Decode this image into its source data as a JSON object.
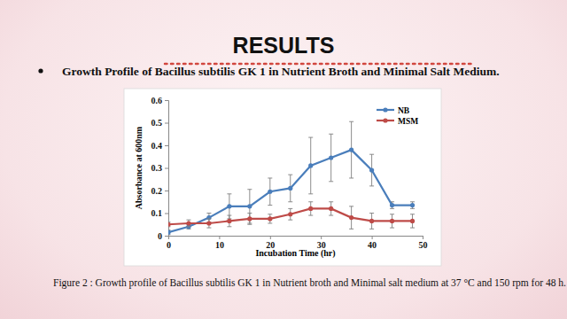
{
  "slide": {
    "heading": "RESULTS",
    "caption": "Figure 2 : Growth profile of Bacillus subtilis GK 1 in Nutrient broth and Minimal salt medium at 37 °C and 150 rpm for 48 h."
  },
  "chart_data": {
    "type": "line",
    "title": "Growth Profile of Bacillus subtilis GK 1 in Nutrient Broth and Minimal Salt Medium.",
    "x_label": "Incubation Time (hr)",
    "y_label": "Absorbance at 600nm",
    "x": [
      0,
      4,
      8,
      12,
      16,
      20,
      24,
      28,
      32,
      36,
      40,
      44,
      48
    ],
    "series": [
      {
        "name": "NB",
        "color": "#4a7ebb",
        "marker": "circle",
        "values": [
          0.015,
          0.04,
          0.08,
          0.13,
          0.13,
          0.195,
          0.21,
          0.31,
          0.345,
          0.38,
          0.29,
          0.135,
          0.135
        ],
        "errors": [
          0.01,
          0.01,
          0.02,
          0.055,
          0.075,
          0.06,
          0.06,
          0.125,
          0.105,
          0.125,
          0.07,
          0.015,
          0.015
        ]
      },
      {
        "name": "MSM",
        "color": "#be4b48",
        "marker": "circle",
        "values": [
          0.05,
          0.055,
          0.055,
          0.065,
          0.075,
          0.075,
          0.095,
          0.12,
          0.12,
          0.08,
          0.065,
          0.065,
          0.065
        ],
        "errors": [
          0.01,
          0.015,
          0.02,
          0.025,
          0.025,
          0.02,
          0.025,
          0.03,
          0.03,
          0.05,
          0.035,
          0.03,
          0.03
        ]
      }
    ],
    "xlim": [
      0,
      50
    ],
    "xticks": [
      0,
      10,
      20,
      30,
      40,
      50
    ],
    "ylim": [
      0,
      0.6
    ],
    "yticks": [
      0,
      0.1,
      0.2,
      0.3,
      0.4,
      0.5,
      0.6
    ],
    "grid": false,
    "legend": "upper right"
  }
}
